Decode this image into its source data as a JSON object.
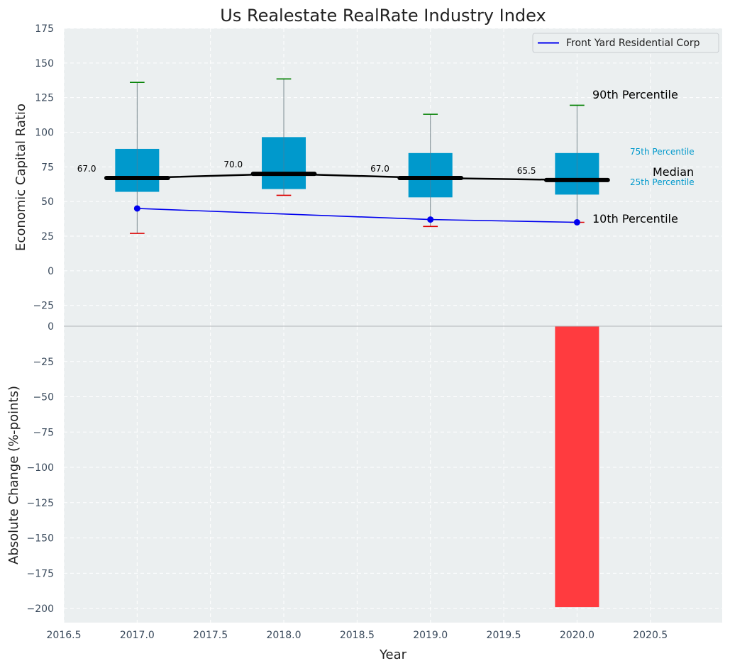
{
  "chart_data": {
    "type": "box",
    "title": "Us Realestate RealRate Industry Index",
    "xlabel": "Year",
    "x_ticks": [
      "2016.5",
      "2017.0",
      "2017.5",
      "2018.0",
      "2018.5",
      "2019.0",
      "2019.5",
      "2020.0",
      "2020.5"
    ],
    "xlim": [
      2016.5,
      2020.99
    ],
    "top_panel": {
      "ylabel": "Economic Capital Ratio",
      "ylim": [
        -40,
        175
      ],
      "y_ticks": [
        "175",
        "150",
        "125",
        "100",
        "75",
        "50",
        "25",
        "0",
        "−25"
      ],
      "y_tick_values": [
        175,
        150,
        125,
        100,
        75,
        50,
        25,
        0,
        -25
      ],
      "boxes": [
        {
          "x": 2017,
          "p10": 27,
          "p25": 57,
          "median": 67,
          "p75": 88,
          "p90": 136,
          "median_label": "67.0"
        },
        {
          "x": 2018,
          "p10": 54.5,
          "p25": 59,
          "median": 70,
          "p75": 96.5,
          "p90": 138.5,
          "median_label": "70.0"
        },
        {
          "x": 2019,
          "p10": 32,
          "p25": 53,
          "median": 67,
          "p75": 85,
          "p90": 113,
          "median_label": "67.0"
        },
        {
          "x": 2020,
          "p10": 35,
          "p25": 55,
          "median": 65.5,
          "p75": 85,
          "p90": 119.5,
          "median_label": "65.5"
        }
      ],
      "series": [
        {
          "name": "Front Yard Residential Corp",
          "x": [
            2017,
            2019,
            2020
          ],
          "values": [
            45,
            37,
            35
          ],
          "color": "#0000ee"
        }
      ],
      "annotations": {
        "p90": "90th Percentile",
        "p75": "75th Percentile",
        "median": "Median",
        "p25": "25th Percentile",
        "p10": "10th Percentile"
      },
      "legend_position": "top-right"
    },
    "bottom_panel": {
      "ylabel": "Absolute Change (%-points)",
      "ylim": [
        -210,
        0
      ],
      "y_ticks": [
        "0",
        "−25",
        "−50",
        "−75",
        "−100",
        "−125",
        "−150",
        "−175",
        "−200"
      ],
      "y_tick_values": [
        0,
        -25,
        -50,
        -75,
        -100,
        -125,
        -150,
        -175,
        -200
      ],
      "bars": [
        {
          "x": 2020,
          "value": -199
        }
      ]
    },
    "grid": true,
    "colors": {
      "box": "#0099cc",
      "median": "#000000",
      "p90_cap": "#008000",
      "p10_cap": "#dd0000",
      "bar": "#ff3b3f",
      "background": "#ebeff0",
      "series": "#0000ee"
    }
  }
}
